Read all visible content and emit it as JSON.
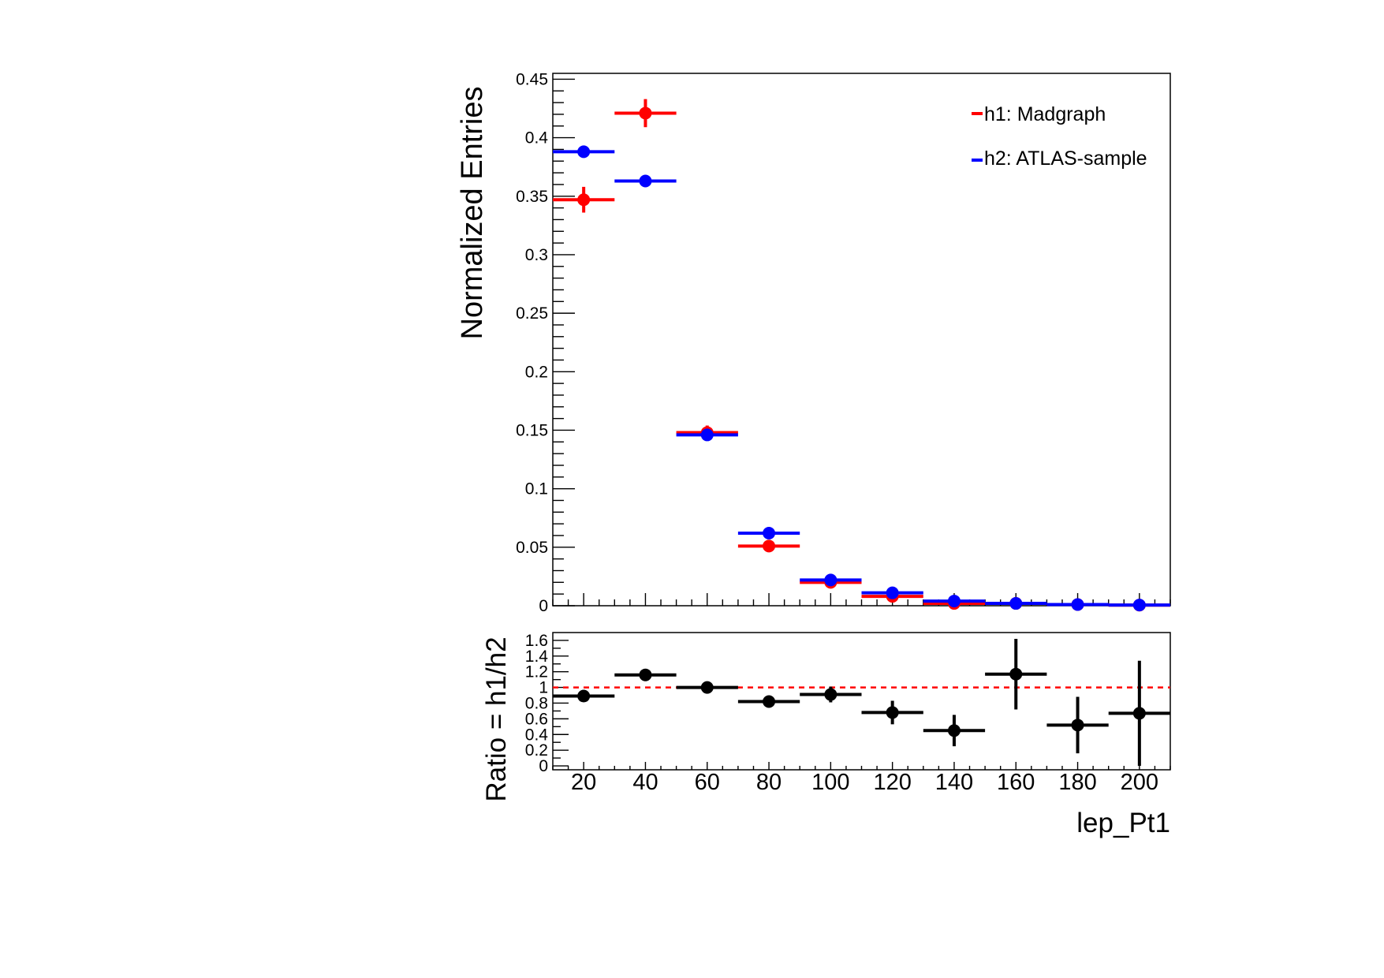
{
  "chart_data": [
    {
      "type": "scatter",
      "panel": "main",
      "ylabel": "Normalized Entries",
      "ylim": [
        0,
        0.455
      ],
      "yticks": [
        "0",
        "0.05",
        "0.1",
        "0.15",
        "0.2",
        "0.25",
        "0.3",
        "0.35",
        "0.4",
        "0.45"
      ],
      "xlim": [
        10,
        210
      ],
      "bin_width": 20,
      "legend_position": "top-right",
      "series": [
        {
          "name": "h1: Madgraph",
          "color": "#ff0000",
          "x": [
            20,
            40,
            60,
            80,
            100,
            120,
            140,
            160,
            180,
            200
          ],
          "y": [
            0.347,
            0.421,
            0.148,
            0.051,
            0.02,
            0.008,
            0.002,
            0.002,
            0.001,
            0.0005
          ],
          "yerr": [
            0.011,
            0.012,
            0.006,
            0.003,
            0.002,
            0.001,
            0.0007,
            0.0007,
            0.0005,
            0.0004
          ]
        },
        {
          "name": "h2: ATLAS-sample",
          "color": "#0000ff",
          "x": [
            20,
            40,
            60,
            80,
            100,
            120,
            140,
            160,
            180,
            200
          ],
          "y": [
            0.388,
            0.363,
            0.146,
            0.062,
            0.022,
            0.011,
            0.004,
            0.002,
            0.001,
            0.0006
          ],
          "yerr": [
            0.001,
            0.001,
            0.0008,
            0.0005,
            0.0003,
            0.0002,
            0.0001,
            0.0001,
            0.0001,
            0.0001
          ]
        }
      ]
    },
    {
      "type": "scatter",
      "panel": "ratio",
      "ylabel": "Ratio = h1/h2",
      "xlabel": "lep_Pt1",
      "ylim": [
        -0.05,
        1.7
      ],
      "yticks": [
        "0",
        "0.2",
        "0.4",
        "0.6",
        "0.8",
        "1",
        "1.2",
        "1.4",
        "1.6"
      ],
      "xlim": [
        10,
        210
      ],
      "xticks": [
        "20",
        "40",
        "60",
        "80",
        "100",
        "120",
        "140",
        "160",
        "180",
        "200"
      ],
      "reference_line": {
        "y": 1.0,
        "color": "#ff0000",
        "style": "dashed"
      },
      "series": [
        {
          "name": "",
          "color": "#000000",
          "x": [
            20,
            40,
            60,
            80,
            100,
            120,
            140,
            160,
            180,
            200
          ],
          "y": [
            0.89,
            1.16,
            1.0,
            0.82,
            0.91,
            0.68,
            0.45,
            1.17,
            0.52,
            0.67
          ],
          "yerr": [
            0.03,
            0.03,
            0.04,
            0.05,
            0.1,
            0.15,
            0.2,
            0.45,
            0.36,
            0.67
          ]
        }
      ]
    }
  ]
}
